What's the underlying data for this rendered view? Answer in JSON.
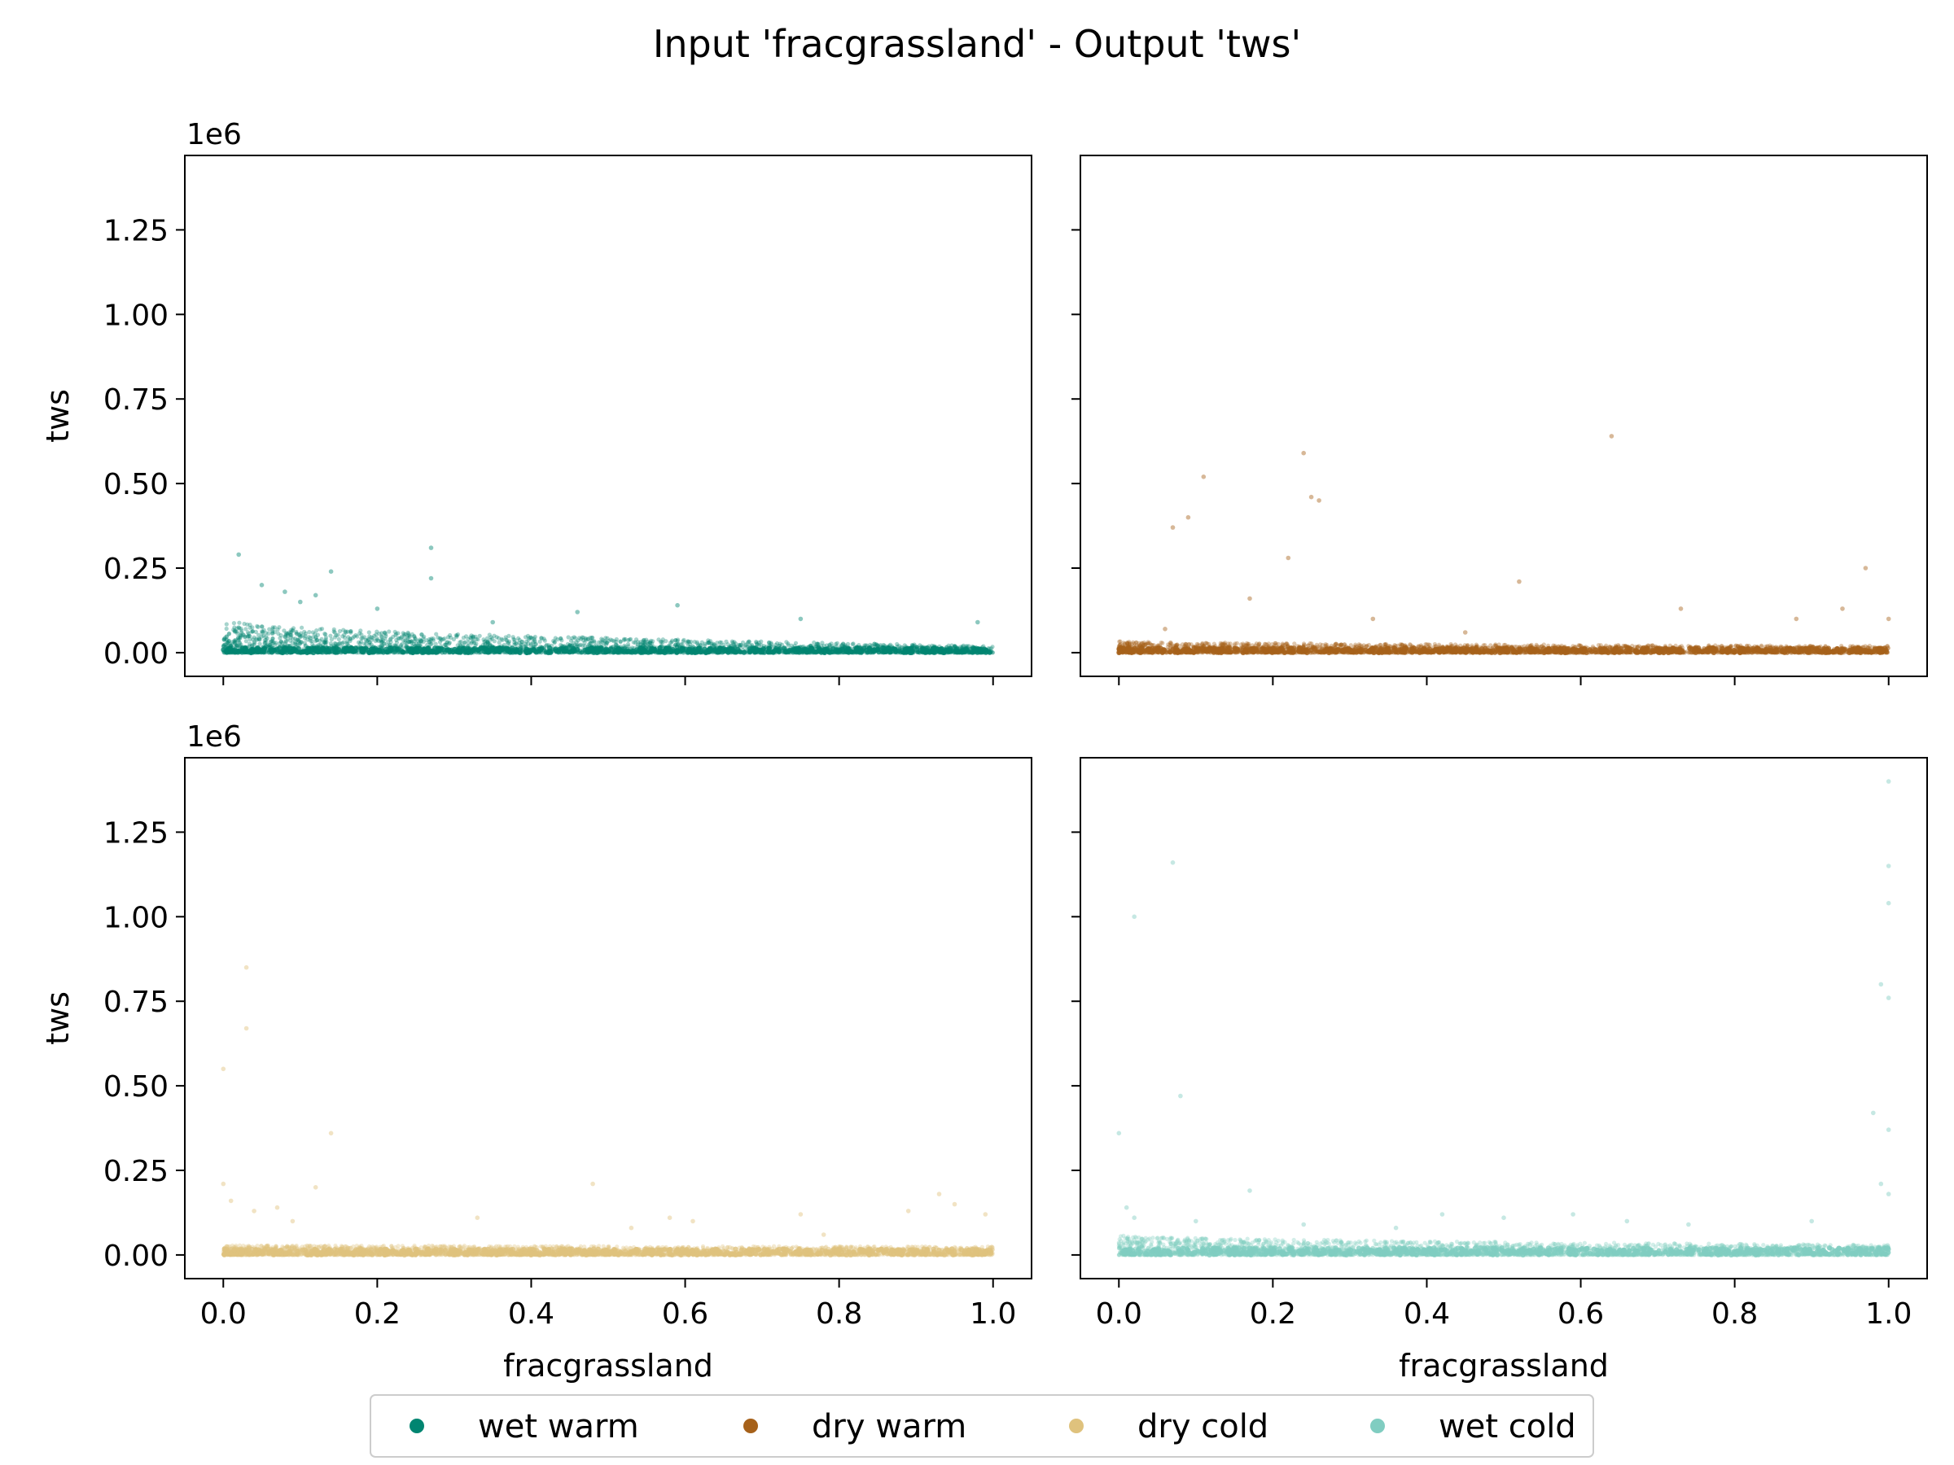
{
  "chart_data": {
    "type": "scatter",
    "title": "Input 'fracgrassland' - Output 'tws'",
    "xlabel": "fracgrassland",
    "ylabel": "tws",
    "y_offset_text": "1e6",
    "xlim": [
      -0.05,
      1.05
    ],
    "ylim": [
      -0.07,
      1.47
    ],
    "x_ticks": [
      "0.0",
      "0.2",
      "0.4",
      "0.6",
      "0.8",
      "1.0"
    ],
    "y_ticks": [
      "0.00",
      "0.25",
      "0.50",
      "0.75",
      "1.00",
      "1.25"
    ],
    "x_tick_values": [
      0,
      0.2,
      0.4,
      0.6,
      0.8,
      1.0
    ],
    "y_tick_values": [
      0,
      0.25,
      0.5,
      0.75,
      1.0,
      1.25
    ],
    "grid": false,
    "legend_position": "bottom-center",
    "panels": [
      {
        "name": "wet warm",
        "color": "#018571",
        "band_max_left": 0.1,
        "band_max_right": 0.02,
        "outliers": [
          [
            0.02,
            0.29
          ],
          [
            0.27,
            0.31
          ],
          [
            0.27,
            0.22
          ],
          [
            0.14,
            0.24
          ],
          [
            0.08,
            0.18
          ],
          [
            0.1,
            0.15
          ],
          [
            0.59,
            0.14
          ],
          [
            0.75,
            0.1
          ],
          [
            0.98,
            0.09
          ],
          [
            0.46,
            0.12
          ],
          [
            0.35,
            0.09
          ],
          [
            0.05,
            0.2
          ],
          [
            0.12,
            0.17
          ],
          [
            0.2,
            0.13
          ]
        ]
      },
      {
        "name": "dry warm",
        "color": "#a6611a",
        "band_max_left": 0.035,
        "band_max_right": 0.02,
        "outliers": [
          [
            0.24,
            0.59
          ],
          [
            0.64,
            0.64
          ],
          [
            0.11,
            0.52
          ],
          [
            0.07,
            0.37
          ],
          [
            0.09,
            0.4
          ],
          [
            0.25,
            0.46
          ],
          [
            0.26,
            0.45
          ],
          [
            0.22,
            0.28
          ],
          [
            0.52,
            0.21
          ],
          [
            0.97,
            0.25
          ],
          [
            0.17,
            0.16
          ],
          [
            0.94,
            0.13
          ],
          [
            0.73,
            0.13
          ],
          [
            0.88,
            0.1
          ],
          [
            1.0,
            0.1
          ],
          [
            0.33,
            0.1
          ],
          [
            0.06,
            0.07
          ],
          [
            0.45,
            0.06
          ]
        ]
      },
      {
        "name": "dry cold",
        "color": "#dfc27d",
        "band_max_left": 0.03,
        "band_max_right": 0.025,
        "outliers": [
          [
            0.03,
            0.85
          ],
          [
            0.03,
            0.67
          ],
          [
            0.0,
            0.55
          ],
          [
            0.14,
            0.36
          ],
          [
            0.48,
            0.21
          ],
          [
            0.0,
            0.21
          ],
          [
            0.01,
            0.16
          ],
          [
            0.12,
            0.2
          ],
          [
            0.04,
            0.13
          ],
          [
            0.07,
            0.14
          ],
          [
            0.75,
            0.12
          ],
          [
            0.89,
            0.13
          ],
          [
            0.93,
            0.18
          ],
          [
            0.95,
            0.15
          ],
          [
            0.99,
            0.12
          ],
          [
            0.33,
            0.11
          ],
          [
            0.58,
            0.11
          ],
          [
            0.61,
            0.1
          ],
          [
            0.09,
            0.1
          ],
          [
            0.53,
            0.08
          ],
          [
            0.78,
            0.06
          ]
        ]
      },
      {
        "name": "wet cold",
        "color": "#80cdc1",
        "band_max_left": 0.06,
        "band_max_right": 0.03,
        "outliers": [
          [
            1.0,
            1.4
          ],
          [
            1.0,
            1.15
          ],
          [
            0.07,
            1.16
          ],
          [
            0.02,
            1.0
          ],
          [
            1.0,
            1.04
          ],
          [
            0.99,
            0.8
          ],
          [
            1.0,
            0.76
          ],
          [
            0.08,
            0.47
          ],
          [
            0.0,
            0.36
          ],
          [
            0.98,
            0.42
          ],
          [
            1.0,
            0.37
          ],
          [
            0.99,
            0.21
          ],
          [
            1.0,
            0.18
          ],
          [
            0.17,
            0.19
          ],
          [
            0.01,
            0.14
          ],
          [
            0.02,
            0.11
          ],
          [
            0.42,
            0.12
          ],
          [
            0.59,
            0.12
          ],
          [
            0.5,
            0.11
          ],
          [
            0.66,
            0.1
          ],
          [
            0.24,
            0.09
          ],
          [
            0.1,
            0.1
          ],
          [
            0.74,
            0.09
          ],
          [
            0.9,
            0.1
          ],
          [
            0.36,
            0.08
          ]
        ]
      }
    ]
  }
}
